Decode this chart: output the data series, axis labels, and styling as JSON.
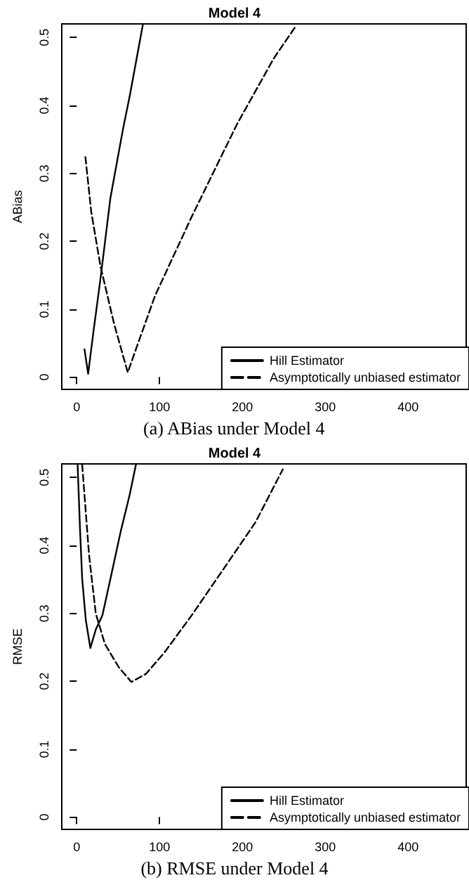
{
  "chart_data": [
    {
      "type": "line",
      "title": "Model 4",
      "ylabel": "ABias",
      "annotations": [
        "(a) ABias under Model 4"
      ],
      "xlim": [
        -18,
        470
      ],
      "ylim": [
        -0.018,
        0.52
      ],
      "xticks": [
        0,
        100,
        200,
        300,
        400
      ],
      "yticks": [
        0,
        0.1,
        0.2,
        0.3,
        0.4,
        0.5
      ],
      "grid": false,
      "legend": "bottom right",
      "marker": "none",
      "series": [
        {
          "name": "Hill Estimator",
          "color": "#000000",
          "line_style": "solid",
          "x": [
            9.4,
            13.8,
            20,
            28.6,
            40.7,
            56,
            64,
            80
          ],
          "values": [
            0.041,
            0.005,
            0.065,
            0.144,
            0.264,
            0.366,
            0.414,
            0.52
          ]
        },
        {
          "name": "Asymptotically unbiased estimator",
          "color": "#000000",
          "line_style": "dashed",
          "x": [
            10.5,
            17.6,
            28.6,
            45,
            61.6,
            72.6,
            94.6,
            138.7,
            193.7,
            237.7,
            264
          ],
          "values": [
            0.324,
            0.243,
            0.164,
            0.079,
            0.007,
            0.045,
            0.12,
            0.236,
            0.373,
            0.469,
            0.516
          ]
        }
      ]
    },
    {
      "type": "line",
      "title": "Model 4",
      "ylabel": "RMSE",
      "annotations": [
        "(b) RMSE under Model 4"
      ],
      "xlim": [
        -18,
        470
      ],
      "ylim": [
        -0.018,
        0.52
      ],
      "xticks": [
        0,
        100,
        200,
        300,
        400
      ],
      "yticks": [
        0,
        0.1,
        0.2,
        0.3,
        0.4,
        0.5
      ],
      "grid": false,
      "legend": "bottom right",
      "marker": "none",
      "series": [
        {
          "name": "Hill Estimator",
          "color": "#000000",
          "line_style": "solid",
          "x": [
            1.1,
            3.9,
            6.6,
            11,
            16.5,
            23,
            31,
            42,
            53,
            64,
            71.5
          ],
          "values": [
            0.519,
            0.427,
            0.351,
            0.29,
            0.249,
            0.276,
            0.297,
            0.358,
            0.42,
            0.475,
            0.519
          ]
        },
        {
          "name": "Asymptotically unbiased estimator",
          "color": "#000000",
          "line_style": "dashed",
          "x": [
            6.6,
            14.9,
            23,
            34,
            50.6,
            66,
            83.6,
            105.6,
            138.7,
            177,
            215.7,
            248.7
          ],
          "values": [
            0.519,
            0.386,
            0.3,
            0.255,
            0.221,
            0.199,
            0.211,
            0.242,
            0.297,
            0.365,
            0.434,
            0.512
          ]
        }
      ]
    }
  ]
}
